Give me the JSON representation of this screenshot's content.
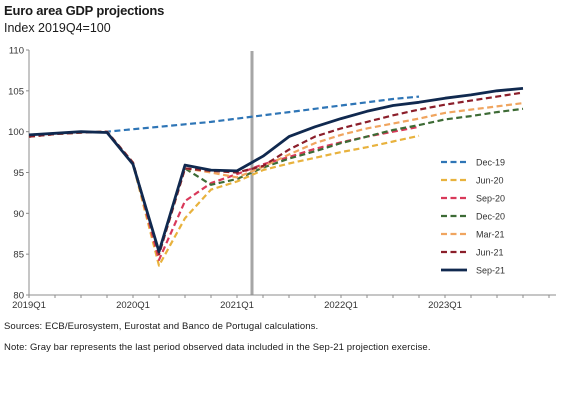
{
  "title": "Euro area GDP projections",
  "subtitle": "Index 2019Q4=100",
  "sources": "Sources: ECB/Eurosystem, Eurostat and Banco de Portugal calculations.",
  "note": "Note: Gray bar represents the last period observed data included in the Sep-21 projection exercise.",
  "chart_data": {
    "type": "line",
    "x": [
      "2019Q1",
      "2019Q2",
      "2019Q3",
      "2019Q4",
      "2020Q1",
      "2020Q2",
      "2020Q3",
      "2020Q4",
      "2021Q1",
      "2021Q2",
      "2021Q3",
      "2021Q4",
      "2022Q1",
      "2022Q2",
      "2022Q3",
      "2022Q4",
      "2023Q1",
      "2023Q2",
      "2023Q3",
      "2023Q4"
    ],
    "x_tick_labels": [
      "2019Q1",
      "2020Q1",
      "2021Q1",
      "2022Q1",
      "2023Q1"
    ],
    "ylim": [
      80,
      110
    ],
    "yticks": [
      80,
      85,
      90,
      95,
      100,
      105,
      110
    ],
    "grid": false,
    "legend": "right",
    "last_observed_marker": "2021Q2",
    "marker_color": "#a6a6a6",
    "series": [
      {
        "name": "Dec-19",
        "color": "#2e75b6",
        "dash": "dashed",
        "width": 2.2,
        "values": [
          99.6,
          99.8,
          99.9,
          100.0,
          100.3,
          100.6,
          100.9,
          101.2,
          101.6,
          102.0,
          102.4,
          102.8,
          103.2,
          103.6,
          104.0,
          104.3,
          null,
          null,
          null,
          null
        ]
      },
      {
        "name": "Jun-20",
        "color": "#e8b23d",
        "dash": "dashed",
        "width": 2.2,
        "values": [
          99.4,
          99.7,
          99.9,
          100.0,
          96.0,
          83.6,
          89.4,
          92.9,
          93.9,
          95.3,
          96.1,
          96.8,
          97.5,
          98.1,
          98.8,
          99.5,
          null,
          null,
          null,
          null
        ]
      },
      {
        "name": "Sep-20",
        "color": "#d9395a",
        "dash": "dashed",
        "width": 2.2,
        "values": [
          99.4,
          99.7,
          99.9,
          100.0,
          96.2,
          84.3,
          91.5,
          93.7,
          94.8,
          96.0,
          96.9,
          97.9,
          98.7,
          99.4,
          100.0,
          100.6,
          null,
          null,
          null,
          null
        ]
      },
      {
        "name": "Dec-20",
        "color": "#3d6b35",
        "dash": "dashed",
        "width": 2.2,
        "values": [
          99.4,
          99.7,
          99.9,
          100.0,
          96.2,
          85.0,
          95.5,
          93.5,
          94.2,
          95.6,
          96.7,
          97.6,
          98.6,
          99.4,
          100.2,
          100.8,
          101.5,
          101.9,
          102.4,
          102.8
        ]
      },
      {
        "name": "Mar-21",
        "color": "#f0a55f",
        "dash": "dashed",
        "width": 2.2,
        "values": [
          99.4,
          99.7,
          99.9,
          100.0,
          96.2,
          85.0,
          95.5,
          95.0,
          94.4,
          95.7,
          97.2,
          98.6,
          99.6,
          100.4,
          101.0,
          101.6,
          102.3,
          102.7,
          103.1,
          103.5
        ]
      },
      {
        "name": "Jun-21",
        "color": "#8b1e2a",
        "dash": "dashed",
        "width": 2.2,
        "values": [
          99.4,
          99.7,
          99.9,
          100.0,
          96.2,
          85.0,
          95.5,
          95.2,
          95.0,
          95.8,
          97.8,
          99.4,
          100.4,
          101.2,
          102.0,
          102.7,
          103.3,
          103.8,
          104.3,
          104.8
        ]
      },
      {
        "name": "Sep-21",
        "color": "#10294f",
        "dash": "solid",
        "width": 2.8,
        "values": [
          99.6,
          99.8,
          100.0,
          99.9,
          96.0,
          85.3,
          95.9,
          95.3,
          95.2,
          97.0,
          99.4,
          100.6,
          101.6,
          102.5,
          103.2,
          103.6,
          104.1,
          104.5,
          105.0,
          105.3
        ]
      }
    ]
  }
}
